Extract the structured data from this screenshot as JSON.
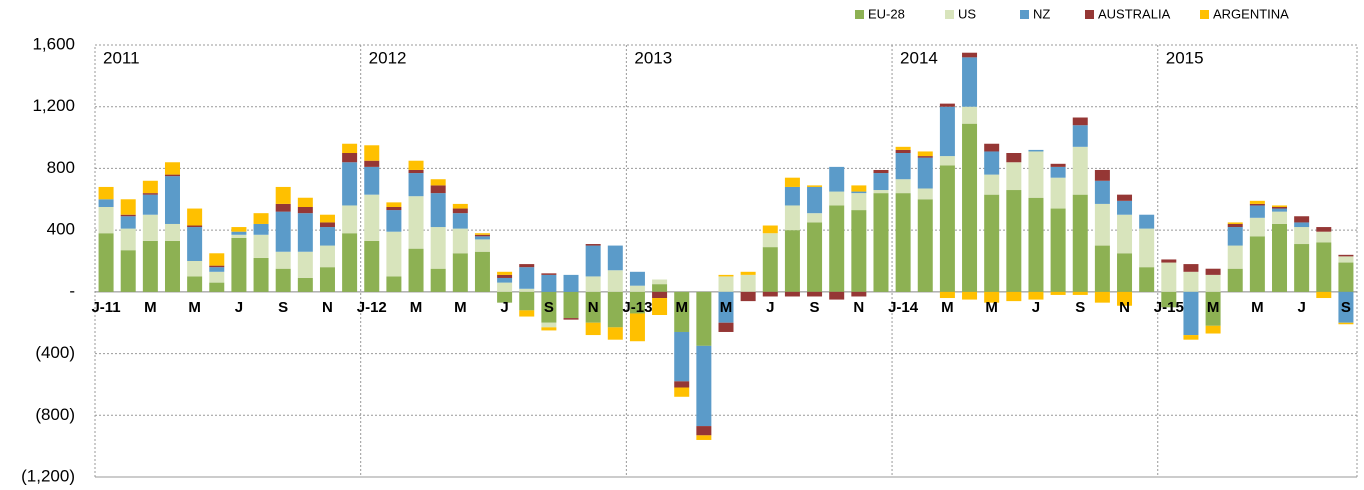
{
  "chart_data": {
    "type": "stacked_bar",
    "categories": [
      "J-11",
      null,
      "M",
      null,
      "M",
      null,
      "J",
      null,
      "S",
      null,
      "N",
      null,
      "J-12",
      null,
      "M",
      null,
      "M",
      null,
      "J",
      null,
      "S",
      null,
      "N",
      null,
      "J-13",
      null,
      "M",
      null,
      "M",
      null,
      "J",
      null,
      "S",
      null,
      "N",
      null,
      "J-14",
      null,
      "M",
      null,
      "M",
      null,
      "J",
      null,
      "S",
      null,
      "N",
      null,
      "J-15",
      null,
      "M",
      null,
      "M",
      null,
      "J",
      null,
      "S"
    ],
    "year_labels": [
      "2011",
      "2012",
      "2013",
      "2014",
      "2015"
    ],
    "series": [
      {
        "name": "EU-28",
        "color": "#8db153",
        "values": [
          380,
          270,
          330,
          330,
          100,
          60,
          350,
          220,
          150,
          90,
          160,
          380,
          330,
          100,
          280,
          150,
          250,
          260,
          -70,
          -120,
          -200,
          -170,
          -200,
          -230,
          -140,
          50,
          -260,
          -350,
          0,
          0,
          290,
          400,
          450,
          560,
          530,
          640,
          640,
          600,
          820,
          1090,
          630,
          660,
          610,
          540,
          630,
          300,
          250,
          160,
          -100,
          0,
          -220,
          150,
          360,
          440,
          310,
          320,
          190
        ]
      },
      {
        "name": "US",
        "color": "#d8e4bc",
        "values": [
          170,
          140,
          170,
          110,
          100,
          70,
          20,
          150,
          110,
          170,
          140,
          180,
          300,
          290,
          340,
          270,
          160,
          80,
          60,
          20,
          -30,
          0,
          100,
          140,
          40,
          30,
          0,
          0,
          100,
          110,
          90,
          160,
          60,
          90,
          110,
          20,
          90,
          70,
          60,
          110,
          130,
          180,
          300,
          200,
          310,
          270,
          250,
          250,
          190,
          130,
          110,
          150,
          120,
          80,
          110,
          70,
          40
        ]
      },
      {
        "name": "NZ",
        "color": "#5b9bc9",
        "values": [
          50,
          80,
          130,
          310,
          220,
          30,
          20,
          70,
          260,
          250,
          120,
          280,
          180,
          140,
          150,
          220,
          100,
          20,
          30,
          140,
          110,
          110,
          200,
          160,
          90,
          0,
          -320,
          -520,
          -200,
          0,
          0,
          120,
          170,
          160,
          10,
          110,
          170,
          200,
          320,
          320,
          150,
          0,
          10,
          70,
          140,
          150,
          90,
          90,
          0,
          -280,
          0,
          120,
          80,
          20,
          30,
          0,
          -200
        ]
      },
      {
        "name": "AUSTRALIA",
        "color": "#953735",
        "values": [
          0,
          10,
          10,
          10,
          10,
          10,
          0,
          0,
          50,
          40,
          30,
          60,
          40,
          20,
          20,
          50,
          30,
          10,
          20,
          20,
          10,
          -10,
          10,
          0,
          0,
          -40,
          -40,
          -60,
          -60,
          -60,
          -30,
          -30,
          -30,
          -50,
          -30,
          20,
          20,
          10,
          20,
          30,
          50,
          60,
          0,
          20,
          50,
          70,
          40,
          0,
          20,
          50,
          40,
          20,
          10,
          10,
          40,
          30,
          10
        ]
      },
      {
        "name": "ARGENTINA",
        "color": "#ffc000",
        "values": [
          80,
          100,
          80,
          80,
          110,
          80,
          30,
          70,
          110,
          60,
          50,
          60,
          100,
          30,
          60,
          40,
          30,
          10,
          20,
          -40,
          -20,
          0,
          -80,
          -80,
          -180,
          -110,
          -60,
          -30,
          10,
          20,
          50,
          60,
          10,
          0,
          40,
          0,
          20,
          30,
          -40,
          -50,
          -70,
          -60,
          -50,
          -20,
          -20,
          -70,
          -90,
          0,
          0,
          -30,
          -50,
          10,
          20,
          10,
          0,
          -40,
          -10
        ]
      }
    ],
    "ylim": [
      -1200,
      1600
    ],
    "yticks": [
      {
        "value": -1200,
        "label": "(1,200)"
      },
      {
        "value": -800,
        "label": "(800)"
      },
      {
        "value": -400,
        "label": "(400)"
      },
      {
        "value": 0,
        "label": "-"
      },
      {
        "value": 400,
        "label": "400"
      },
      {
        "value": 800,
        "label": "800"
      },
      {
        "value": 1200,
        "label": "1,200"
      },
      {
        "value": 1600,
        "label": "1,600"
      }
    ],
    "grid": true,
    "legend": "top-right"
  }
}
